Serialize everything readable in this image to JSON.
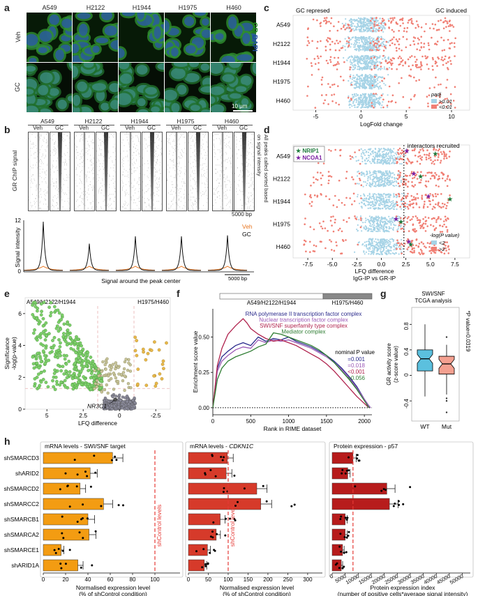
{
  "panel_labels": {
    "a": "a",
    "b": "b",
    "c": "c",
    "d": "d",
    "e": "e",
    "f": "f",
    "g": "g",
    "h": "h"
  },
  "panel_a": {
    "cell_lines": [
      "A549",
      "H2122",
      "H1944",
      "H1975",
      "H460"
    ],
    "rows": [
      "Veh",
      "GC"
    ],
    "stain_gr": "GR",
    "stain_dapi": "DAPI",
    "scale_bar": "10 μm"
  },
  "panel_b": {
    "cell_lines": [
      "A549",
      "H2122",
      "H1944",
      "H1975",
      "H460"
    ],
    "conditions": [
      "Veh",
      "GC"
    ],
    "y_label": "GR ChIP signal",
    "side_label": "All peaks called sorted based on signal intensity",
    "heatmap_scale": "5000 bp",
    "profile_y_label": "Signal intensity",
    "profile_y_ticks": [
      "0",
      "12"
    ],
    "profile_x_label": "Signal around the peak center",
    "profile_scale": "5000 bp",
    "legend": [
      "Veh",
      "GC"
    ],
    "colors": {
      "veh": "#e87722",
      "gc": "#111111"
    }
  },
  "panel_c": {
    "title_left": "GC represed",
    "title_right": "GC induced",
    "x_label": "LogFold change",
    "x_ticks": [
      "-5",
      "0",
      "5",
      "10"
    ],
    "categories": [
      "A549",
      "H2122",
      "H1944",
      "H1975",
      "H460"
    ],
    "legend_title": "padj",
    "legend": [
      ">0.01",
      "<0.01"
    ],
    "colors": {
      "ns": "#a6d3e6",
      "sig": "#f07f74"
    }
  },
  "panel_d": {
    "annotation": "interactors recruited",
    "legend_proteins": [
      "NRIP1",
      "NCOA1"
    ],
    "x_label": "LFQ difference",
    "x_label2": "IgG-IP vs GR-IP",
    "x_ticks": [
      "-7.5",
      "-5.0",
      "-2.5",
      "0.0",
      "2.5",
      "5.0",
      "7.5"
    ],
    "categories": [
      "A549",
      "H2122",
      "H1944",
      "H1975",
      "H460"
    ],
    "legend_title": "-log(P value)",
    "legend": [
      "<2",
      ">2"
    ],
    "colors": {
      "nrip1": "#1e7b3c",
      "ncoa1": "#7a1fa2"
    }
  },
  "panel_e": {
    "header_left": "A549/H2122/H1944",
    "header_right": "H1975/H460",
    "y_label": "Significance",
    "y_label2": "-log(p-value)",
    "y_ticks": [
      "0",
      "2",
      "4",
      "6"
    ],
    "x_label": "LFQ difference",
    "x_ticks": [
      "5",
      "2.5",
      "0",
      "-2.5"
    ],
    "highlight": "NR3C1"
  },
  "panel_f": {
    "bar_left": "A549/H2122/H1944",
    "bar_right": "H1975/H460",
    "y_label": "Enrichment score value",
    "x_label": "Rank in RIME dataset",
    "x_ticks": [
      "0",
      "500",
      "1000",
      "1500",
      "2000"
    ],
    "y_ticks": [
      "0.00",
      "0.25",
      "0.50"
    ],
    "chart_data": {
      "type": "line",
      "title": "",
      "xlabel": "Rank in RIME dataset",
      "ylabel": "Enrichment score value",
      "xlim": [
        0,
        2100
      ],
      "ylim": [
        -0.05,
        0.7
      ],
      "series": [
        {
          "name": "RNA polymerase II transcription factor complex",
          "color": "#2b2b8c",
          "p": "=0.001",
          "x": [
            0,
            60,
            120,
            200,
            300,
            400,
            500,
            600,
            700,
            800,
            900,
            1000,
            1100,
            1200,
            1300,
            1400,
            1500,
            1600,
            1700,
            1800,
            1900,
            2000,
            2050,
            2080
          ],
          "y": [
            0,
            0.28,
            0.36,
            0.4,
            0.44,
            0.46,
            0.44,
            0.5,
            0.47,
            0.49,
            0.48,
            0.5,
            0.47,
            0.45,
            0.43,
            0.4,
            0.37,
            0.33,
            0.28,
            0.22,
            0.15,
            0.06,
            0.02,
            0
          ]
        },
        {
          "name": "Nuclear transcription factor complex",
          "color": "#9b59b6",
          "p": "=0.018",
          "x": [
            0,
            60,
            120,
            200,
            300,
            400,
            500,
            600,
            700,
            800,
            900,
            1000,
            1100,
            1200,
            1300,
            1400,
            1500,
            1600,
            1700,
            1800,
            1900,
            2000,
            2050,
            2080
          ],
          "y": [
            0,
            0.26,
            0.33,
            0.37,
            0.41,
            0.43,
            0.42,
            0.48,
            0.46,
            0.48,
            0.47,
            0.48,
            0.46,
            0.44,
            0.42,
            0.39,
            0.36,
            0.32,
            0.27,
            0.21,
            0.14,
            0.06,
            0.02,
            0
          ]
        },
        {
          "name": "SWI/SNF superfamily type complex",
          "color": "#b0224d",
          "p": "<0.001",
          "x": [
            0,
            60,
            120,
            200,
            300,
            400,
            450,
            500,
            600,
            700,
            800,
            900,
            1000,
            1100,
            1200,
            1300,
            1400,
            1500,
            1600,
            1700,
            1800,
            1900,
            2000,
            2060
          ],
          "y": [
            0,
            0.3,
            0.42,
            0.52,
            0.58,
            0.63,
            0.6,
            0.56,
            0.52,
            0.49,
            0.47,
            0.48,
            0.46,
            0.44,
            0.41,
            0.38,
            0.35,
            0.31,
            0.26,
            0.2,
            0.14,
            0.08,
            0.03,
            0
          ]
        },
        {
          "name": "Mediator complex",
          "color": "#2e7d32",
          "p": "=0.056",
          "x": [
            0,
            60,
            120,
            200,
            300,
            400,
            500,
            600,
            700,
            800,
            900,
            1000,
            1100,
            1200,
            1300,
            1400,
            1500,
            1600,
            1700,
            1800,
            1900,
            2000,
            2060
          ],
          "y": [
            0,
            0.2,
            0.28,
            0.33,
            0.36,
            0.38,
            0.4,
            0.43,
            0.45,
            0.53,
            0.52,
            0.5,
            0.48,
            0.46,
            0.44,
            0.41,
            0.37,
            0.32,
            0.26,
            0.2,
            0.13,
            0.05,
            0
          ]
        }
      ]
    },
    "pvalue_title": "nominal P value"
  },
  "panel_g": {
    "title1": "SWI/SNF",
    "title2": "TCGA analysis",
    "y_label": "GR activity score",
    "y_label2": "(z-score value)",
    "p_label": "*P value=0.0319",
    "categories": [
      "WT",
      "Mut"
    ],
    "y_ticks": [
      "0.8",
      "0.4",
      "0",
      "-0.4"
    ],
    "colors": {
      "wt": "#5bc0de",
      "mut": "#f4a090"
    }
  },
  "panel_h": {
    "shrna": [
      "shSMARCD3",
      "shARID2",
      "shSMARCD2",
      "shSMARCC2",
      "shSMARCB1",
      "shSMARCA2",
      "shSMARCE1",
      "shARID1A"
    ],
    "charts": [
      {
        "title": "mRNA levels - SWI/SNF target",
        "x_label": "Normalised expression level",
        "x_label2": "(% of shControl condition)",
        "x_ticks": [
          "0",
          "20",
          "40",
          "60",
          "80",
          "100"
        ],
        "control_label": "shControl levels",
        "color": "#f39c12",
        "chart_data": {
          "type": "bar",
          "categories": [
            "shSMARCD3",
            "shARID2",
            "shSMARCD2",
            "shSMARCC2",
            "shSMARCB1",
            "shSMARCA2",
            "shSMARCE1",
            "shARID1A"
          ],
          "values": [
            62,
            42,
            33,
            54,
            40,
            41,
            16,
            31
          ],
          "xlim": [
            0,
            120
          ],
          "control": 100
        }
      },
      {
        "title": "mRNA levels - CDKN1C",
        "x_label": "Normalised expression level",
        "x_label2": "(% of shControl condition)",
        "x_ticks": [
          "0",
          "50",
          "100",
          "150",
          "200",
          "250",
          "300"
        ],
        "control_label": "shControl levels",
        "color": "#d63a2a",
        "chart_data": {
          "type": "bar",
          "categories": [
            "shSMARCD3",
            "shARID2",
            "shSMARCD2",
            "shSMARCC2",
            "shSMARCB1",
            "shSMARCA2",
            "shSMARCE1",
            "shARID1A"
          ],
          "values": [
            98,
            95,
            172,
            182,
            80,
            70,
            48,
            40
          ],
          "xlim": [
            0,
            330
          ],
          "control": 100
        }
      },
      {
        "title": "Protein expression - p57",
        "x_label": "Protein expression index",
        "x_label2": "(number of positive cells*average signal intensity)",
        "x_ticks": [
          "0",
          "5000",
          "10000",
          "15000",
          "20000",
          "25000",
          "30000",
          "35000",
          "40000",
          "45000",
          "50000"
        ],
        "control_label": "",
        "color": "#b71c1c",
        "chart_data": {
          "type": "bar",
          "categories": [
            "shSMARCD3",
            "shARID2",
            "shSMARCD2",
            "shSMARCC2",
            "shSMARCB1",
            "shSMARCA2",
            "shSMARCE1",
            "shARID1A"
          ],
          "values": [
            8000,
            6000,
            21000,
            22000,
            5000,
            5000,
            4000,
            3500
          ],
          "xlim": [
            0,
            52000
          ],
          "control": 8000
        }
      }
    ]
  }
}
